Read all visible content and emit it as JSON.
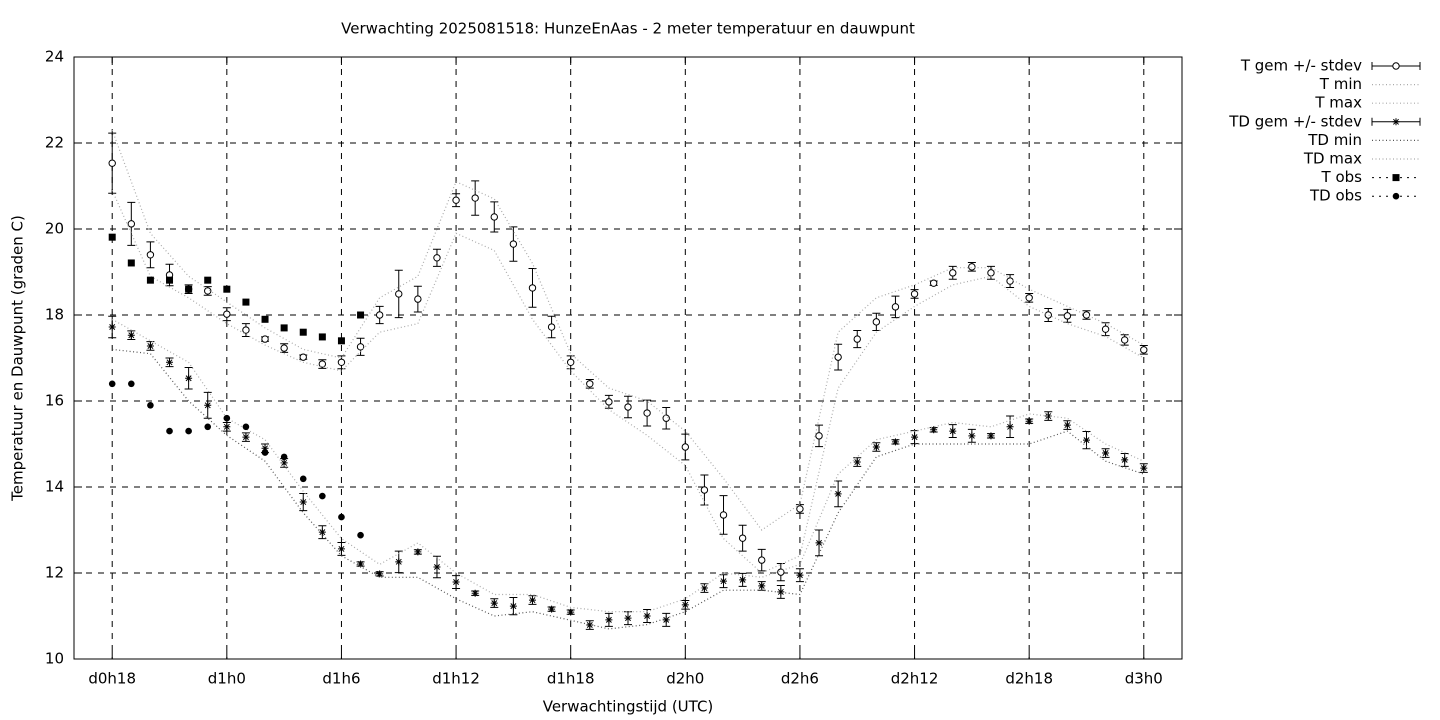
{
  "chart_data": {
    "type": "line",
    "title": "Verwachting 2025081518: HunzeEnAas - 2 meter temperatuur en dauwpunt",
    "x_label": "Verwachtingstijd (UTC)",
    "y_label": "Temperatuur en Dauwpunt (graden C)",
    "xlim": [
      16,
      74
    ],
    "ylim": [
      10,
      24
    ],
    "xticks": [
      {
        "value": 18,
        "label": "d0h18"
      },
      {
        "value": 24,
        "label": "d1h0"
      },
      {
        "value": 30,
        "label": "d1h6"
      },
      {
        "value": 36,
        "label": "d1h12"
      },
      {
        "value": 42,
        "label": "d1h18"
      },
      {
        "value": 48,
        "label": "d2h0"
      },
      {
        "value": 54,
        "label": "d2h6"
      },
      {
        "value": 60,
        "label": "d2h12"
      },
      {
        "value": 66,
        "label": "d2h18"
      },
      {
        "value": 72,
        "label": "d3h0"
      }
    ],
    "yticks": [
      10,
      12,
      14,
      16,
      18,
      20,
      22,
      24
    ],
    "grid": true,
    "legend": "outside-right",
    "series": [
      {
        "name": "T gem +/- stdev",
        "style": "errorbars",
        "marker": "circle",
        "color": "#000000",
        "x": [
          18,
          19,
          20,
          21,
          22,
          23,
          24,
          25,
          26,
          27,
          28,
          29,
          30,
          31,
          32,
          33,
          34,
          35,
          36,
          37,
          38,
          39,
          40,
          41,
          42,
          43,
          44,
          45,
          46,
          47,
          48,
          49,
          50,
          51,
          52,
          53,
          54,
          55,
          56,
          57,
          58,
          59,
          60,
          61,
          62,
          63,
          64,
          65,
          66,
          67,
          68,
          69,
          70,
          71,
          72
        ],
        "values": [
          21.53,
          20.12,
          19.4,
          18.93,
          18.6,
          18.56,
          18.02,
          17.65,
          17.44,
          17.23,
          17.02,
          16.86,
          16.9,
          17.26,
          18.0,
          18.49,
          18.37,
          19.33,
          20.67,
          20.72,
          20.28,
          19.65,
          18.63,
          17.72,
          16.9,
          16.4,
          15.98,
          15.86,
          15.72,
          15.6,
          14.93,
          13.93,
          13.35,
          12.81,
          12.3,
          12.02,
          13.49,
          15.19,
          17.02,
          17.44,
          17.84,
          18.19,
          18.49,
          18.74,
          18.98,
          19.12,
          18.98,
          18.79,
          18.4,
          18.0,
          17.98,
          18.0,
          17.67,
          17.42,
          17.19
        ],
        "errors": [
          0.7,
          0.5,
          0.3,
          0.25,
          0.1,
          0.1,
          0.15,
          0.15,
          0.05,
          0.1,
          0.05,
          0.1,
          0.15,
          0.2,
          0.2,
          0.55,
          0.3,
          0.2,
          0.15,
          0.4,
          0.35,
          0.4,
          0.45,
          0.25,
          0.15,
          0.1,
          0.15,
          0.25,
          0.3,
          0.25,
          0.3,
          0.35,
          0.45,
          0.3,
          0.25,
          0.2,
          0.1,
          0.25,
          0.3,
          0.2,
          0.2,
          0.25,
          0.1,
          0.05,
          0.15,
          0.1,
          0.15,
          0.15,
          0.1,
          0.15,
          0.15,
          0.1,
          0.15,
          0.12,
          0.1
        ]
      },
      {
        "name": "T min",
        "style": "dotted",
        "color": "#aaaaaa",
        "x": [
          18,
          20,
          22,
          24,
          26,
          28,
          30,
          32,
          34,
          36,
          38,
          40,
          42,
          44,
          46,
          48,
          50,
          52,
          54,
          56,
          58,
          60,
          62,
          64,
          66,
          68,
          70,
          72
        ],
        "values": [
          20.9,
          18.9,
          18.4,
          17.8,
          17.3,
          16.9,
          16.7,
          17.6,
          17.8,
          19.9,
          19.5,
          17.9,
          16.7,
          15.8,
          15.2,
          14.5,
          12.8,
          12.0,
          12.4,
          16.3,
          17.6,
          18.2,
          18.7,
          18.9,
          18.2,
          17.8,
          17.5,
          17.0
        ]
      },
      {
        "name": "T max",
        "style": "dotted",
        "color": "#aaaaaa",
        "x": [
          18,
          20,
          22,
          24,
          26,
          28,
          30,
          32,
          34,
          36,
          38,
          40,
          42,
          44,
          46,
          48,
          50,
          52,
          54,
          56,
          58,
          60,
          62,
          64,
          66,
          68,
          70,
          72
        ],
        "values": [
          22.3,
          19.9,
          18.9,
          18.3,
          17.7,
          17.2,
          17.0,
          18.4,
          18.9,
          21.1,
          20.7,
          19.2,
          17.1,
          16.3,
          16.0,
          15.3,
          14.2,
          13.0,
          13.6,
          17.6,
          18.4,
          18.7,
          19.1,
          19.1,
          18.6,
          18.2,
          17.8,
          17.3
        ]
      },
      {
        "name": "TD gem +/- stdev",
        "style": "errorbars",
        "marker": "star",
        "color": "#000000",
        "x": [
          18,
          19,
          20,
          21,
          22,
          23,
          24,
          25,
          26,
          27,
          28,
          29,
          30,
          31,
          32,
          33,
          34,
          35,
          36,
          37,
          38,
          39,
          40,
          41,
          42,
          43,
          44,
          45,
          46,
          47,
          48,
          49,
          50,
          51,
          52,
          53,
          54,
          55,
          56,
          57,
          58,
          59,
          60,
          61,
          62,
          63,
          64,
          65,
          66,
          67,
          68,
          69,
          70,
          71,
          72
        ],
        "values": [
          17.72,
          17.53,
          17.28,
          16.9,
          16.53,
          15.9,
          15.4,
          15.16,
          14.9,
          14.56,
          13.65,
          12.95,
          12.56,
          12.21,
          11.98,
          12.26,
          12.49,
          12.14,
          11.79,
          11.53,
          11.3,
          11.23,
          11.37,
          11.16,
          11.09,
          10.79,
          10.91,
          10.95,
          11.0,
          10.91,
          11.26,
          11.65,
          11.81,
          11.84,
          11.7,
          11.56,
          11.95,
          12.7,
          13.84,
          14.58,
          14.93,
          15.05,
          15.16,
          15.33,
          15.3,
          15.19,
          15.19,
          15.4,
          15.53,
          15.65,
          15.44,
          15.09,
          14.79,
          14.63,
          14.44
        ],
        "errors": [
          0.25,
          0.1,
          0.1,
          0.1,
          0.25,
          0.3,
          0.1,
          0.1,
          0.1,
          0.1,
          0.2,
          0.15,
          0.15,
          0.05,
          0.05,
          0.25,
          0.05,
          0.25,
          0.15,
          0.05,
          0.1,
          0.2,
          0.1,
          0.05,
          0.05,
          0.1,
          0.15,
          0.15,
          0.15,
          0.15,
          0.1,
          0.1,
          0.15,
          0.15,
          0.1,
          0.15,
          0.15,
          0.3,
          0.3,
          0.1,
          0.1,
          0.05,
          0.15,
          0.05,
          0.15,
          0.15,
          0.05,
          0.25,
          0.05,
          0.1,
          0.1,
          0.2,
          0.1,
          0.15,
          0.1
        ]
      },
      {
        "name": "TD min",
        "style": "dotted",
        "color": "#555555",
        "x": [
          18,
          20,
          22,
          24,
          26,
          28,
          30,
          32,
          34,
          36,
          38,
          40,
          42,
          44,
          46,
          48,
          50,
          52,
          54,
          56,
          58,
          60,
          62,
          64,
          66,
          68,
          70,
          72
        ],
        "values": [
          17.2,
          17.1,
          16.0,
          15.2,
          14.6,
          13.4,
          12.4,
          11.9,
          11.9,
          11.4,
          11.0,
          11.1,
          10.9,
          10.7,
          10.8,
          11.1,
          11.6,
          11.6,
          11.5,
          13.4,
          14.7,
          15.0,
          15.0,
          15.0,
          15.0,
          15.3,
          14.6,
          14.3
        ]
      },
      {
        "name": "TD max",
        "style": "dotted",
        "color": "#aaaaaa",
        "x": [
          18,
          20,
          22,
          24,
          26,
          28,
          30,
          32,
          34,
          36,
          38,
          40,
          42,
          44,
          46,
          48,
          50,
          52,
          54,
          56,
          58,
          60,
          62,
          64,
          66,
          68,
          70,
          72
        ],
        "values": [
          17.9,
          17.4,
          16.9,
          15.6,
          15.1,
          13.9,
          12.8,
          12.2,
          12.7,
          12.0,
          11.5,
          11.5,
          11.2,
          11.1,
          11.1,
          11.4,
          12.0,
          11.9,
          12.2,
          14.3,
          15.1,
          15.3,
          15.5,
          15.4,
          15.7,
          15.6,
          15.0,
          14.6
        ]
      },
      {
        "name": "T obs",
        "style": "points",
        "marker": "square",
        "color": "#000000",
        "x": [
          18,
          19,
          20,
          21,
          22,
          23,
          24,
          25,
          26,
          27,
          28,
          29,
          30,
          31
        ],
        "values": [
          19.81,
          19.21,
          18.81,
          18.81,
          18.6,
          18.81,
          18.6,
          18.3,
          17.9,
          17.7,
          17.6,
          17.49,
          17.4,
          18.0
        ]
      },
      {
        "name": "TD obs",
        "style": "points",
        "marker": "dot",
        "color": "#000000",
        "x": [
          18,
          19,
          20,
          21,
          22,
          23,
          24,
          25,
          26,
          27,
          28,
          29,
          30,
          31
        ],
        "values": [
          16.4,
          16.4,
          15.9,
          15.3,
          15.3,
          15.4,
          15.6,
          15.4,
          14.8,
          14.7,
          14.19,
          13.79,
          13.3,
          12.88
        ]
      }
    ]
  }
}
